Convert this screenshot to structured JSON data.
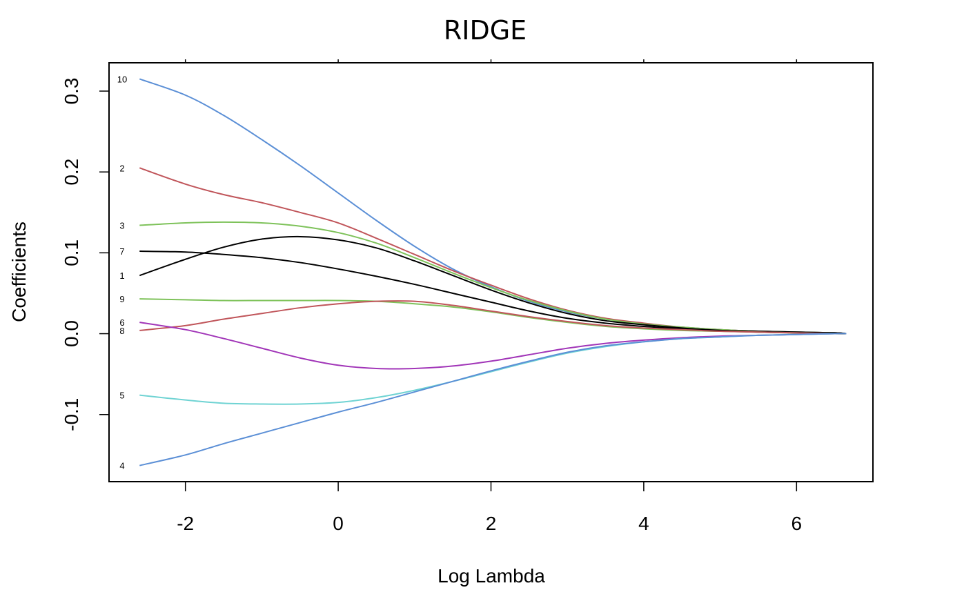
{
  "chart_data": {
    "type": "line",
    "title": "RIDGE",
    "xlabel": "Log Lambda",
    "ylabel": "Coefficients",
    "xlim": [
      -3.0,
      7.0
    ],
    "ylim": [
      -0.183,
      0.335
    ],
    "xticks": [
      -2,
      0,
      2,
      4,
      6
    ],
    "xtick_labels": [
      "-2",
      "0",
      "2",
      "4",
      "6"
    ],
    "top_ticks": [
      -2,
      0,
      2,
      4,
      6
    ],
    "yticks": [
      -0.1,
      0.0,
      0.1,
      0.2,
      0.3
    ],
    "ytick_labels": [
      "-0.1",
      "0.0",
      "0.1",
      "0.2",
      "0.3"
    ],
    "grid": false,
    "series": [
      {
        "name": "10",
        "color": "#5b8fd6",
        "x": [
          -2.6,
          -2.0,
          -1.5,
          -1.0,
          -0.5,
          0.0,
          0.5,
          1.0,
          1.5,
          2.0,
          2.5,
          3.0,
          3.5,
          4.0,
          4.5,
          5.0,
          5.5,
          6.0,
          6.5,
          6.65
        ],
        "y": [
          0.315,
          0.295,
          0.27,
          0.24,
          0.208,
          0.174,
          0.14,
          0.108,
          0.08,
          0.058,
          0.04,
          0.027,
          0.018,
          0.012,
          0.008,
          0.005,
          0.003,
          0.002,
          0.001,
          0.0
        ]
      },
      {
        "name": "2",
        "color": "#c0555a",
        "x": [
          -2.6,
          -2.0,
          -1.5,
          -1.0,
          -0.5,
          0.0,
          0.5,
          1.0,
          1.5,
          2.0,
          2.5,
          3.0,
          3.5,
          4.0,
          4.5,
          5.0,
          5.5,
          6.0,
          6.5,
          6.65
        ],
        "y": [
          0.205,
          0.185,
          0.172,
          0.162,
          0.15,
          0.137,
          0.118,
          0.098,
          0.078,
          0.06,
          0.043,
          0.029,
          0.019,
          0.013,
          0.008,
          0.005,
          0.003,
          0.002,
          0.001,
          0.0
        ]
      },
      {
        "name": "3",
        "color": "#7ec25a",
        "x": [
          -2.6,
          -2.0,
          -1.5,
          -1.0,
          -0.5,
          0.0,
          0.5,
          1.0,
          1.5,
          2.0,
          2.5,
          3.0,
          3.5,
          4.0,
          4.5,
          5.0,
          5.5,
          6.0,
          6.5,
          6.65
        ],
        "y": [
          0.134,
          0.137,
          0.138,
          0.137,
          0.133,
          0.125,
          0.112,
          0.094,
          0.075,
          0.057,
          0.041,
          0.028,
          0.018,
          0.012,
          0.008,
          0.005,
          0.003,
          0.002,
          0.001,
          0.0
        ]
      },
      {
        "name": "7",
        "color": "#000000",
        "x": [
          -2.6,
          -2.0,
          -1.5,
          -1.0,
          -0.5,
          0.0,
          0.5,
          1.0,
          1.5,
          2.0,
          2.5,
          3.0,
          3.5,
          4.0,
          4.5,
          5.0,
          5.5,
          6.0,
          6.5,
          6.65
        ],
        "y": [
          0.102,
          0.101,
          0.098,
          0.094,
          0.088,
          0.08,
          0.071,
          0.061,
          0.05,
          0.039,
          0.028,
          0.019,
          0.013,
          0.009,
          0.006,
          0.004,
          0.002,
          0.001,
          0.001,
          0.0
        ]
      },
      {
        "name": "1",
        "color": "#000000",
        "x": [
          -2.6,
          -2.0,
          -1.5,
          -1.0,
          -0.5,
          0.0,
          0.5,
          1.0,
          1.5,
          2.0,
          2.5,
          3.0,
          3.5,
          4.0,
          4.5,
          5.0,
          5.5,
          6.0,
          6.5,
          6.65
        ],
        "y": [
          0.072,
          0.092,
          0.107,
          0.117,
          0.12,
          0.116,
          0.106,
          0.09,
          0.072,
          0.054,
          0.038,
          0.025,
          0.016,
          0.011,
          0.007,
          0.004,
          0.003,
          0.002,
          0.001,
          0.0
        ]
      },
      {
        "name": "9",
        "color": "#7ec25a",
        "x": [
          -2.6,
          -2.0,
          -1.5,
          -1.0,
          -0.5,
          0.0,
          0.5,
          1.0,
          1.5,
          2.0,
          2.5,
          3.0,
          3.5,
          4.0,
          4.5,
          5.0,
          5.5,
          6.0,
          6.5,
          6.65
        ],
        "y": [
          0.043,
          0.042,
          0.041,
          0.041,
          0.041,
          0.041,
          0.04,
          0.037,
          0.033,
          0.027,
          0.02,
          0.014,
          0.009,
          0.006,
          0.004,
          0.003,
          0.002,
          0.001,
          0.0,
          0.0
        ]
      },
      {
        "name": "8",
        "color": "#c0555a",
        "x": [
          -2.6,
          -2.0,
          -1.5,
          -1.0,
          -0.5,
          0.0,
          0.5,
          1.0,
          1.5,
          2.0,
          2.5,
          3.0,
          3.5,
          4.0,
          4.5,
          5.0,
          5.5,
          6.0,
          6.5,
          6.65
        ],
        "y": [
          0.004,
          0.01,
          0.018,
          0.025,
          0.032,
          0.037,
          0.04,
          0.04,
          0.035,
          0.028,
          0.021,
          0.015,
          0.01,
          0.007,
          0.005,
          0.003,
          0.002,
          0.001,
          0.0,
          0.0
        ]
      },
      {
        "name": "6",
        "color": "#a135b8",
        "x": [
          -2.6,
          -2.0,
          -1.5,
          -1.0,
          -0.5,
          0.0,
          0.5,
          1.0,
          1.5,
          2.0,
          2.5,
          3.0,
          3.5,
          4.0,
          4.5,
          5.0,
          5.5,
          6.0,
          6.5,
          6.65
        ],
        "y": [
          0.014,
          0.005,
          -0.006,
          -0.018,
          -0.03,
          -0.039,
          -0.043,
          -0.043,
          -0.04,
          -0.034,
          -0.026,
          -0.018,
          -0.012,
          -0.008,
          -0.005,
          -0.003,
          -0.002,
          -0.001,
          0.0,
          0.0
        ]
      },
      {
        "name": "5",
        "color": "#6fd3d3",
        "x": [
          -2.6,
          -2.0,
          -1.5,
          -1.0,
          -0.5,
          0.0,
          0.5,
          1.0,
          1.5,
          2.0,
          2.5,
          3.0,
          3.5,
          4.0,
          4.5,
          5.0,
          5.5,
          6.0,
          6.5,
          6.65
        ],
        "y": [
          -0.076,
          -0.082,
          -0.086,
          -0.087,
          -0.087,
          -0.085,
          -0.079,
          -0.07,
          -0.059,
          -0.047,
          -0.035,
          -0.024,
          -0.016,
          -0.01,
          -0.006,
          -0.004,
          -0.002,
          -0.001,
          0.0,
          0.0
        ]
      },
      {
        "name": "4",
        "color": "#5b8fd6",
        "x": [
          -2.6,
          -2.0,
          -1.5,
          -1.0,
          -0.5,
          0.0,
          0.5,
          1.0,
          1.5,
          2.0,
          2.5,
          3.0,
          3.5,
          4.0,
          4.5,
          5.0,
          5.5,
          6.0,
          6.5,
          6.65
        ],
        "y": [
          -0.163,
          -0.15,
          -0.136,
          -0.123,
          -0.11,
          -0.097,
          -0.085,
          -0.072,
          -0.059,
          -0.046,
          -0.034,
          -0.023,
          -0.015,
          -0.01,
          -0.006,
          -0.004,
          -0.002,
          -0.001,
          0.0,
          0.0
        ]
      }
    ]
  }
}
